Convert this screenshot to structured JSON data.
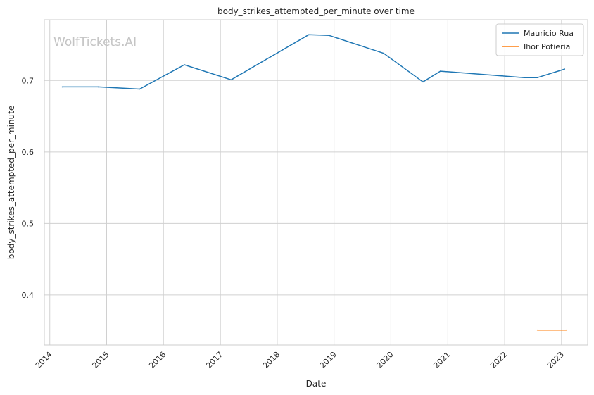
{
  "chart_data": {
    "type": "line",
    "title": "body_strikes_attempted_per_minute over time",
    "xlabel": "Date",
    "ylabel": "body_strikes_attempted_per_minute",
    "watermark": "WolfTickets.AI",
    "x_ticks": [
      "2014",
      "2015",
      "2016",
      "2017",
      "2018",
      "2019",
      "2020",
      "2021",
      "2022",
      "2023"
    ],
    "y_ticks": [
      "0.4",
      "0.5",
      "0.6",
      "0.7"
    ],
    "xlim": [
      "2013-11-27",
      "2023-06-18"
    ],
    "ylim": [
      0.33,
      0.785
    ],
    "grid": true,
    "legend_position": "top-right",
    "series": [
      {
        "name": "Mauricio Rua",
        "color": "#1f77b4",
        "points": [
          [
            "2014-03-22",
            0.691
          ],
          [
            "2014-11-08",
            0.691
          ],
          [
            "2015-08-01",
            0.688
          ],
          [
            "2016-05-14",
            0.722
          ],
          [
            "2017-03-11",
            0.701
          ],
          [
            "2018-07-22",
            0.764
          ],
          [
            "2018-12-01",
            0.763
          ],
          [
            "2019-11-16",
            0.738
          ],
          [
            "2020-07-25",
            0.698
          ],
          [
            "2020-11-14",
            0.713
          ],
          [
            "2022-05-07",
            0.704
          ],
          [
            "2022-07-30",
            0.704
          ],
          [
            "2023-01-21",
            0.716
          ]
        ]
      },
      {
        "name": "Ihor Potieria",
        "color": "#ff7f0e",
        "points": [
          [
            "2022-07-30",
            0.351
          ],
          [
            "2023-02-01",
            0.351
          ]
        ]
      }
    ]
  }
}
